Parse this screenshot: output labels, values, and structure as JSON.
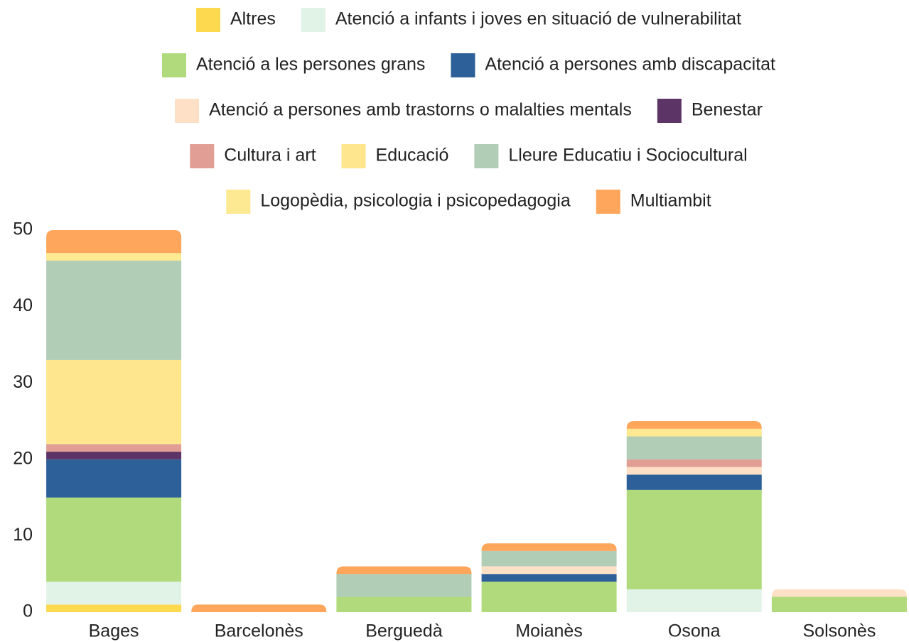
{
  "chart_data": {
    "type": "stacked_bar",
    "categories": [
      "Bages",
      "Barcelonès",
      "Berguedà",
      "Moianès",
      "Osona",
      "Solsonès"
    ],
    "series": [
      {
        "name": "Altres",
        "color": "#fcd94f",
        "values": [
          1,
          0,
          0,
          0,
          0,
          0
        ]
      },
      {
        "name": "Atenció a infants i joves en situació de vulnerabilitat",
        "color": "#e1f2e7",
        "values": [
          3,
          0,
          0,
          0,
          3,
          0
        ]
      },
      {
        "name": "Atenció a les persones grans",
        "color": "#b0da7b",
        "values": [
          11,
          0,
          2,
          4,
          13,
          2
        ]
      },
      {
        "name": "Atenció a persones amb discapacitat",
        "color": "#2d5f98",
        "values": [
          5,
          0,
          0,
          1,
          2,
          0
        ]
      },
      {
        "name": "Atenció a persones amb trastorns o malalties mentals",
        "color": "#fde0c5",
        "values": [
          0,
          0,
          0,
          1,
          1,
          1
        ]
      },
      {
        "name": "Benestar",
        "color": "#5c3566",
        "values": [
          1,
          0,
          0,
          0,
          0,
          0
        ]
      },
      {
        "name": "Cultura i art",
        "color": "#e09e95",
        "values": [
          1,
          0,
          0,
          0,
          1,
          0
        ]
      },
      {
        "name": "Educació",
        "color": "#fee68e",
        "values": [
          11,
          0,
          0,
          0,
          0,
          0
        ]
      },
      {
        "name": "Lleure Educatiu i Sociocultural",
        "color": "#b1cdb6",
        "values": [
          13,
          0,
          3,
          2,
          3,
          0
        ]
      },
      {
        "name": "Logopèdia, psicologia i psicopedagogia",
        "color": "#fde992",
        "values": [
          1,
          0,
          0,
          0,
          1,
          0
        ]
      },
      {
        "name": "Multiambit",
        "color": "#fda65c",
        "values": [
          3,
          1,
          1,
          1,
          1,
          0
        ]
      }
    ],
    "ylim": [
      0,
      50
    ],
    "yticks": [
      0,
      10,
      20,
      30,
      40,
      50
    ],
    "legend": "top"
  }
}
